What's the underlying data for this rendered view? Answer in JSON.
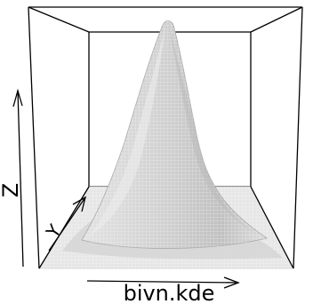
{
  "chart_data": {
    "type": "surface",
    "title": "",
    "xlabel": "bivn.kde",
    "ylabel": "Y",
    "zlabel": "Z",
    "grid": false,
    "surface_color": "#d9d9d9",
    "mesh_color": "#ffffff",
    "peak": {
      "x": 0.0,
      "y": 0.0,
      "z": 1.0
    }
  }
}
